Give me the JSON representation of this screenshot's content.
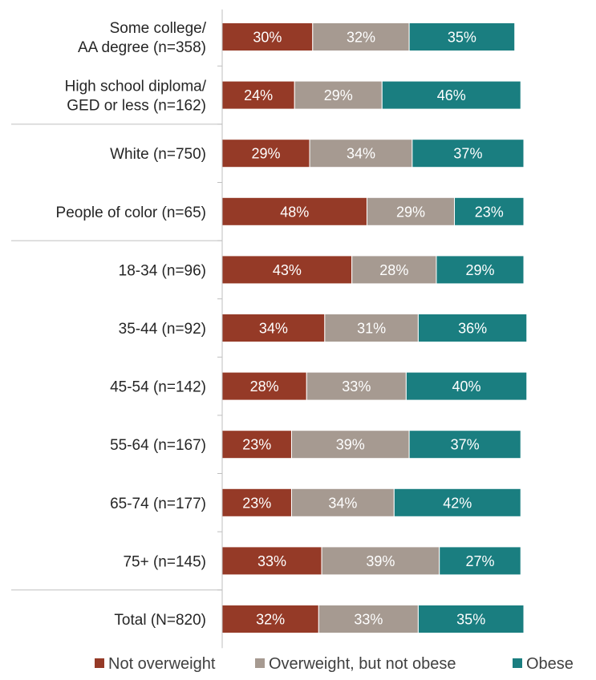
{
  "chart_data": {
    "type": "bar",
    "orientation": "horizontal",
    "stacked": true,
    "categories": [
      "Some college/\nAA degree (n=358)",
      "High school diploma/\nGED or less (n=162)",
      "White (n=750)",
      "People of color (n=65)",
      "18-34 (n=96)",
      "35-44 (n=92)",
      "45-54 (n=142)",
      "55-64 (n=167)",
      "65-74 (n=177)",
      "75+ (n=145)",
      "Total  (N=820)"
    ],
    "group_breaks_after": [
      1,
      3,
      9
    ],
    "series": [
      {
        "name": "Not overweight",
        "color": "#953A27",
        "values": [
          30,
          24,
          29,
          48,
          43,
          34,
          28,
          23,
          23,
          33,
          32
        ]
      },
      {
        "name": "Overweight, but not obese",
        "color": "#A69A91",
        "values": [
          32,
          29,
          34,
          29,
          28,
          31,
          33,
          39,
          34,
          39,
          33
        ]
      },
      {
        "name": "Obese",
        "color": "#1A7E80",
        "values": [
          35,
          46,
          37,
          23,
          29,
          36,
          40,
          37,
          42,
          27,
          35
        ]
      }
    ],
    "value_format": "{v}%",
    "xlim": [
      0,
      100
    ],
    "legend": "bottom",
    "grid": false
  }
}
